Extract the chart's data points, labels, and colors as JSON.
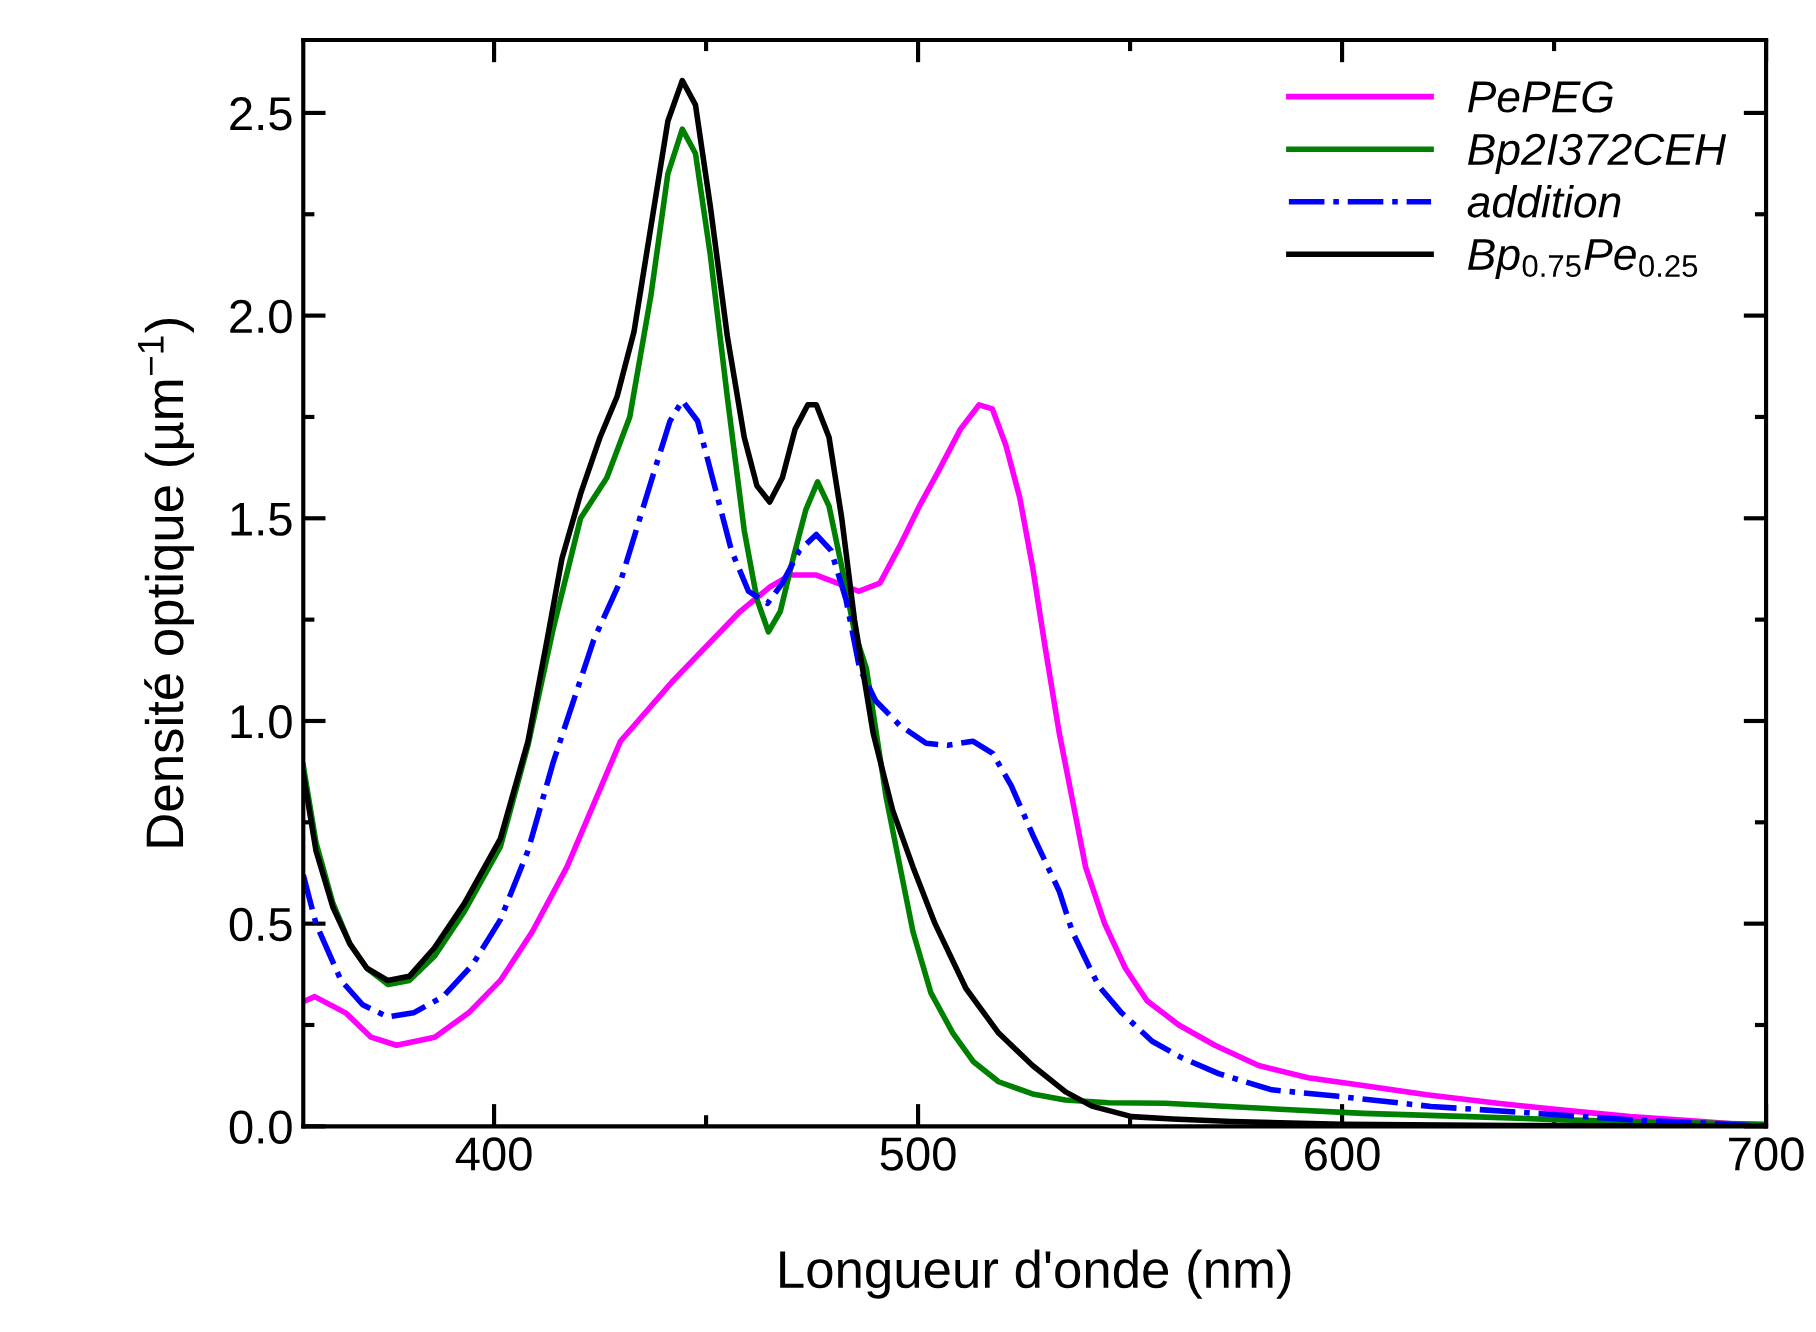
{
  "chart_data": {
    "type": "line",
    "xlabel": "Longueur d'onde (nm)",
    "ylabel": "Densité optique (µm$^{−1}$)",
    "xlim": [
      355,
      700
    ],
    "xticks": [
      400,
      500,
      600,
      700
    ],
    "ylim": [
      0,
      2.68
    ],
    "yticks": [
      {
        "value": 0,
        "label": "0.0"
      },
      0.5,
      {
        "value": 1,
        "label": "1.0"
      },
      1.5,
      {
        "value": 2,
        "label": "2.0"
      },
      2.5
    ],
    "grid": false,
    "legend": "top right",
    "series": [
      {
        "name": "PePEG",
        "color": "#ff00ff",
        "x": [
          355.5,
          357.7,
          365,
          371,
          377,
          386,
          394,
          401.5,
          409,
          417.2,
          429.8,
          442.3,
          458,
          465,
          469.8,
          476,
          481,
          486,
          491,
          495.6,
          500.3,
          505,
          510,
          514.4,
          517.5,
          520.7,
          524,
          527,
          530,
          533.3,
          536.5,
          539.5,
          544,
          548.9,
          554,
          561.5,
          570,
          580.3,
          592,
          605.4,
          620,
          636.7,
          652,
          668,
          685,
          700
        ],
        "values": [
          0.31,
          0.32,
          0.28,
          0.22,
          0.2,
          0.22,
          0.28,
          0.36,
          0.48,
          0.64,
          0.95,
          1.1,
          1.27,
          1.33,
          1.36,
          1.36,
          1.34,
          1.32,
          1.34,
          1.43,
          1.53,
          1.62,
          1.72,
          1.78,
          1.77,
          1.68,
          1.55,
          1.38,
          1.18,
          0.97,
          0.8,
          0.64,
          0.5,
          0.39,
          0.31,
          0.25,
          0.2,
          0.15,
          0.12,
          0.1,
          0.078,
          0.057,
          0.04,
          0.024,
          0.012,
          0.0
        ]
      },
      {
        "name": "Bp2I372CEH",
        "color": "#008000",
        "x": [
          355,
          358,
          362,
          366,
          370,
          375,
          380,
          386,
          393,
          401.5,
          408,
          414,
          420.4,
          426.6,
          432,
          437,
          441,
          444.4,
          447.5,
          451,
          455,
          459,
          462,
          464.7,
          467.5,
          470.5,
          473.5,
          476.3,
          479,
          482,
          485,
          487.8,
          492.5,
          498.8,
          503,
          508.2,
          513,
          519,
          527,
          534.7,
          545,
          558.3,
          580,
          605,
          630,
          652,
          675,
          700
        ],
        "values": [
          0.89,
          0.7,
          0.55,
          0.45,
          0.39,
          0.35,
          0.36,
          0.42,
          0.53,
          0.69,
          0.94,
          1.23,
          1.5,
          1.6,
          1.75,
          2.05,
          2.35,
          2.46,
          2.4,
          2.15,
          1.8,
          1.47,
          1.3,
          1.22,
          1.27,
          1.4,
          1.52,
          1.59,
          1.53,
          1.38,
          1.22,
          1.13,
          0.81,
          0.48,
          0.33,
          0.23,
          0.16,
          0.11,
          0.08,
          0.065,
          0.058,
          0.057,
          0.045,
          0.032,
          0.024,
          0.016,
          0.01,
          0.005
        ]
      },
      {
        "name": "addition",
        "color": "#0000ff",
        "line_style": "dashdot",
        "x": [
          355,
          358,
          363.9,
          369,
          374.9,
          381,
          388,
          395,
          401.5,
          408,
          414,
          423.5,
          430,
          437.6,
          441.5,
          444.4,
          448,
          452,
          456,
          460,
          464.5,
          468,
          472,
          476,
          479.5,
          483,
          486.2,
          490,
          495.6,
          501.9,
          507,
          512.9,
          517.6,
          522,
          527,
          533.3,
          536.4,
          541,
          542.7,
          548,
          555.2,
          562,
          570.9,
          583.4,
          599.1,
          621,
          646,
          668,
          685,
          700
        ],
        "values": [
          0.62,
          0.5,
          0.36,
          0.3,
          0.27,
          0.28,
          0.32,
          0.4,
          0.51,
          0.68,
          0.9,
          1.2,
          1.35,
          1.61,
          1.74,
          1.79,
          1.74,
          1.58,
          1.42,
          1.32,
          1.29,
          1.34,
          1.42,
          1.46,
          1.42,
          1.3,
          1.13,
          1.05,
          0.99,
          0.945,
          0.94,
          0.95,
          0.92,
          0.84,
          0.72,
          0.58,
          0.48,
          0.38,
          0.345,
          0.28,
          0.21,
          0.17,
          0.13,
          0.09,
          0.074,
          0.049,
          0.032,
          0.016,
          0.008,
          0.0
        ]
      },
      {
        "name": "Bp$_{0.75}$Pe$_{0.25}$",
        "color": "#000000",
        "x": [
          355,
          358,
          362,
          366,
          370,
          374.9,
          380,
          385.9,
          393,
          401.5,
          408,
          412.5,
          416,
          420.4,
          425,
          429,
          433,
          437,
          441,
          444.4,
          447.5,
          451,
          455,
          459,
          462,
          465,
          468,
          471,
          474,
          476,
          479,
          482,
          485,
          489.4,
          494,
          498.8,
          504,
          511.3,
          519,
          527,
          534.8,
          541,
          550.4,
          560,
          574,
          600,
          640,
          700
        ],
        "values": [
          0.87,
          0.68,
          0.54,
          0.45,
          0.39,
          0.36,
          0.37,
          0.44,
          0.55,
          0.71,
          0.95,
          1.2,
          1.4,
          1.56,
          1.7,
          1.8,
          1.96,
          2.22,
          2.48,
          2.58,
          2.52,
          2.27,
          1.95,
          1.7,
          1.58,
          1.54,
          1.6,
          1.72,
          1.78,
          1.78,
          1.7,
          1.5,
          1.25,
          0.97,
          0.78,
          0.64,
          0.5,
          0.34,
          0.23,
          0.15,
          0.085,
          0.05,
          0.024,
          0.018,
          0.012,
          0.005,
          0.002,
          0.0
        ]
      }
    ]
  }
}
